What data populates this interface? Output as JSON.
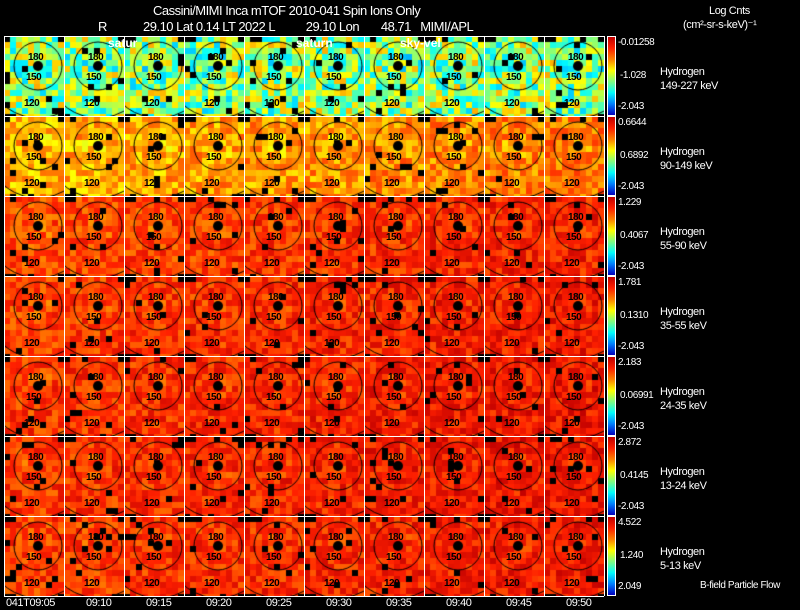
{
  "header": {
    "title": "Cassini/MIMI Inca mTOF  2010-041   Spin   Ions Only",
    "subtitle_r": "R",
    "subtitle": "29.10 Lat 0.14 LT 2022 L          29.10 Lon       48.71   MIMI/APL",
    "units_line1": "Log Cnts",
    "units_line2": "(cm²-sr-s-keV)⁻¹"
  },
  "overlays": [
    "satur",
    "saturn",
    "sky-vel"
  ],
  "panel_labels": [
    "180",
    "150",
    "120"
  ],
  "footer_note": "B-field Particle Flow",
  "colors": {
    "background": "#000000",
    "grid": "#ffffff",
    "colormap": [
      "#0000c0",
      "#0080ff",
      "#00ffff",
      "#80ff80",
      "#ffff00",
      "#ff8000",
      "#ff2000",
      "#c00000"
    ]
  },
  "chart_data": {
    "type": "heatmap",
    "title": "Cassini/MIMI Inca mTOF 2010-041 Spin Ions Only",
    "x_tick_labels": [
      "041T09:05",
      "09:10",
      "09:15",
      "09:20",
      "09:25",
      "09:30",
      "09:35",
      "09:40",
      "09:45",
      "09:50"
    ],
    "rows": [
      {
        "species": "Hydrogen",
        "energy": "149-227 keV",
        "cbar_max": "-0.01258",
        "cbar_mid": "-1.028",
        "cbar_min": "-2.043",
        "mean_level": 0.45
      },
      {
        "species": "Hydrogen",
        "energy": "90-149 keV",
        "cbar_max": "0.6644",
        "cbar_mid": "0.6892",
        "cbar_min": "-2.043",
        "mean_level": 0.66
      },
      {
        "species": "Hydrogen",
        "energy": "55-90 keV",
        "cbar_max": "1.229",
        "cbar_mid": "0.4067",
        "cbar_min": "-2.043",
        "mean_level": 0.8
      },
      {
        "species": "Hydrogen",
        "energy": "35-55 keV",
        "cbar_max": "1.781",
        "cbar_mid": "0.1310",
        "cbar_min": "-2.043",
        "mean_level": 0.82
      },
      {
        "species": "Hydrogen",
        "energy": "24-35 keV",
        "cbar_max": "2.183",
        "cbar_mid": "0.06991",
        "cbar_min": "-2.043",
        "mean_level": 0.83
      },
      {
        "species": "Hydrogen",
        "energy": "13-24 keV",
        "cbar_max": "2.872",
        "cbar_mid": "0.4145",
        "cbar_min": "-2.043",
        "mean_level": 0.83
      },
      {
        "species": "Hydrogen",
        "energy": "5-13 keV",
        "cbar_max": "4.522",
        "cbar_mid": "1.240",
        "cbar_min": "2.049",
        "mean_level": 0.82
      }
    ]
  }
}
